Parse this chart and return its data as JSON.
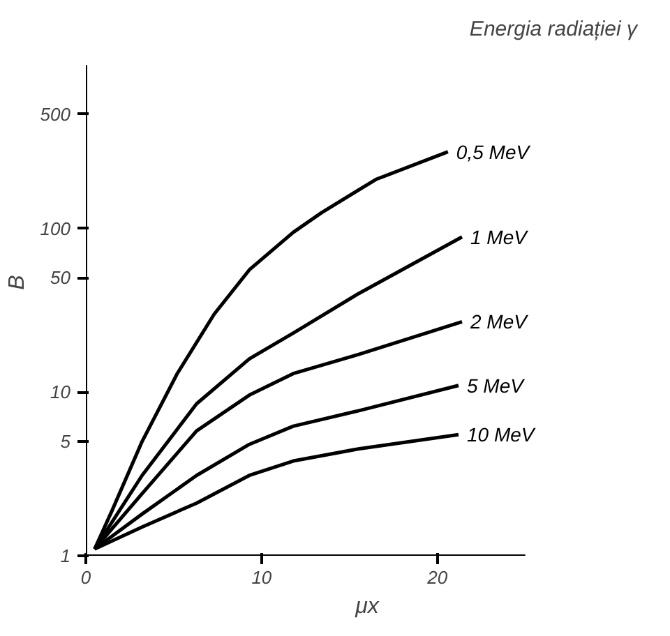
{
  "chart_data": {
    "type": "line",
    "xlabel": "μx",
    "ylabel": "B",
    "annotations": [
      "Energia radiației γ"
    ],
    "series": [
      {
        "name": "0,5 MeV",
        "color": "#000000",
        "x": [
          0.5,
          1.5,
          3.2,
          5.2,
          7.3,
          9.3,
          11.8,
          13.4,
          16.5,
          20.6
        ],
        "values": [
          1.1,
          1.9,
          5,
          13,
          30,
          56,
          95,
          125,
          200,
          295
        ]
      },
      {
        "name": "1 MeV",
        "color": "#000000",
        "x": [
          0.5,
          3.2,
          6.3,
          9.3,
          11.8,
          15.5,
          21.4
        ],
        "values": [
          1.1,
          3.1,
          8.5,
          16,
          23,
          40,
          89
        ]
      },
      {
        "name": "2 MeV",
        "color": "#000000",
        "x": [
          0.5,
          3.2,
          6.3,
          9.3,
          11.8,
          15.5,
          21.4
        ],
        "values": [
          1.1,
          2.4,
          5.8,
          9.6,
          13,
          17,
          27
        ]
      },
      {
        "name": "5 MeV",
        "color": "#000000",
        "x": [
          0.5,
          3.2,
          6.3,
          9.3,
          11.8,
          15.5,
          21.2
        ],
        "values": [
          1.1,
          1.8,
          3.1,
          4.8,
          6.2,
          7.7,
          11
        ]
      },
      {
        "name": "10 MeV",
        "color": "#000000",
        "x": [
          0.5,
          3.2,
          6.3,
          9.3,
          11.8,
          15.5,
          21.2
        ],
        "values": [
          1.1,
          1.5,
          2.1,
          3.1,
          3.8,
          4.5,
          5.5
        ]
      }
    ],
    "log": "y",
    "xlim": [
      0,
      25
    ],
    "ylim": [
      1,
      1000
    ],
    "xticks": [
      0,
      10,
      20
    ],
    "yticks": [
      1,
      5,
      10,
      50,
      100,
      500
    ],
    "grid": false,
    "line_style": "solid",
    "marker": "none"
  }
}
